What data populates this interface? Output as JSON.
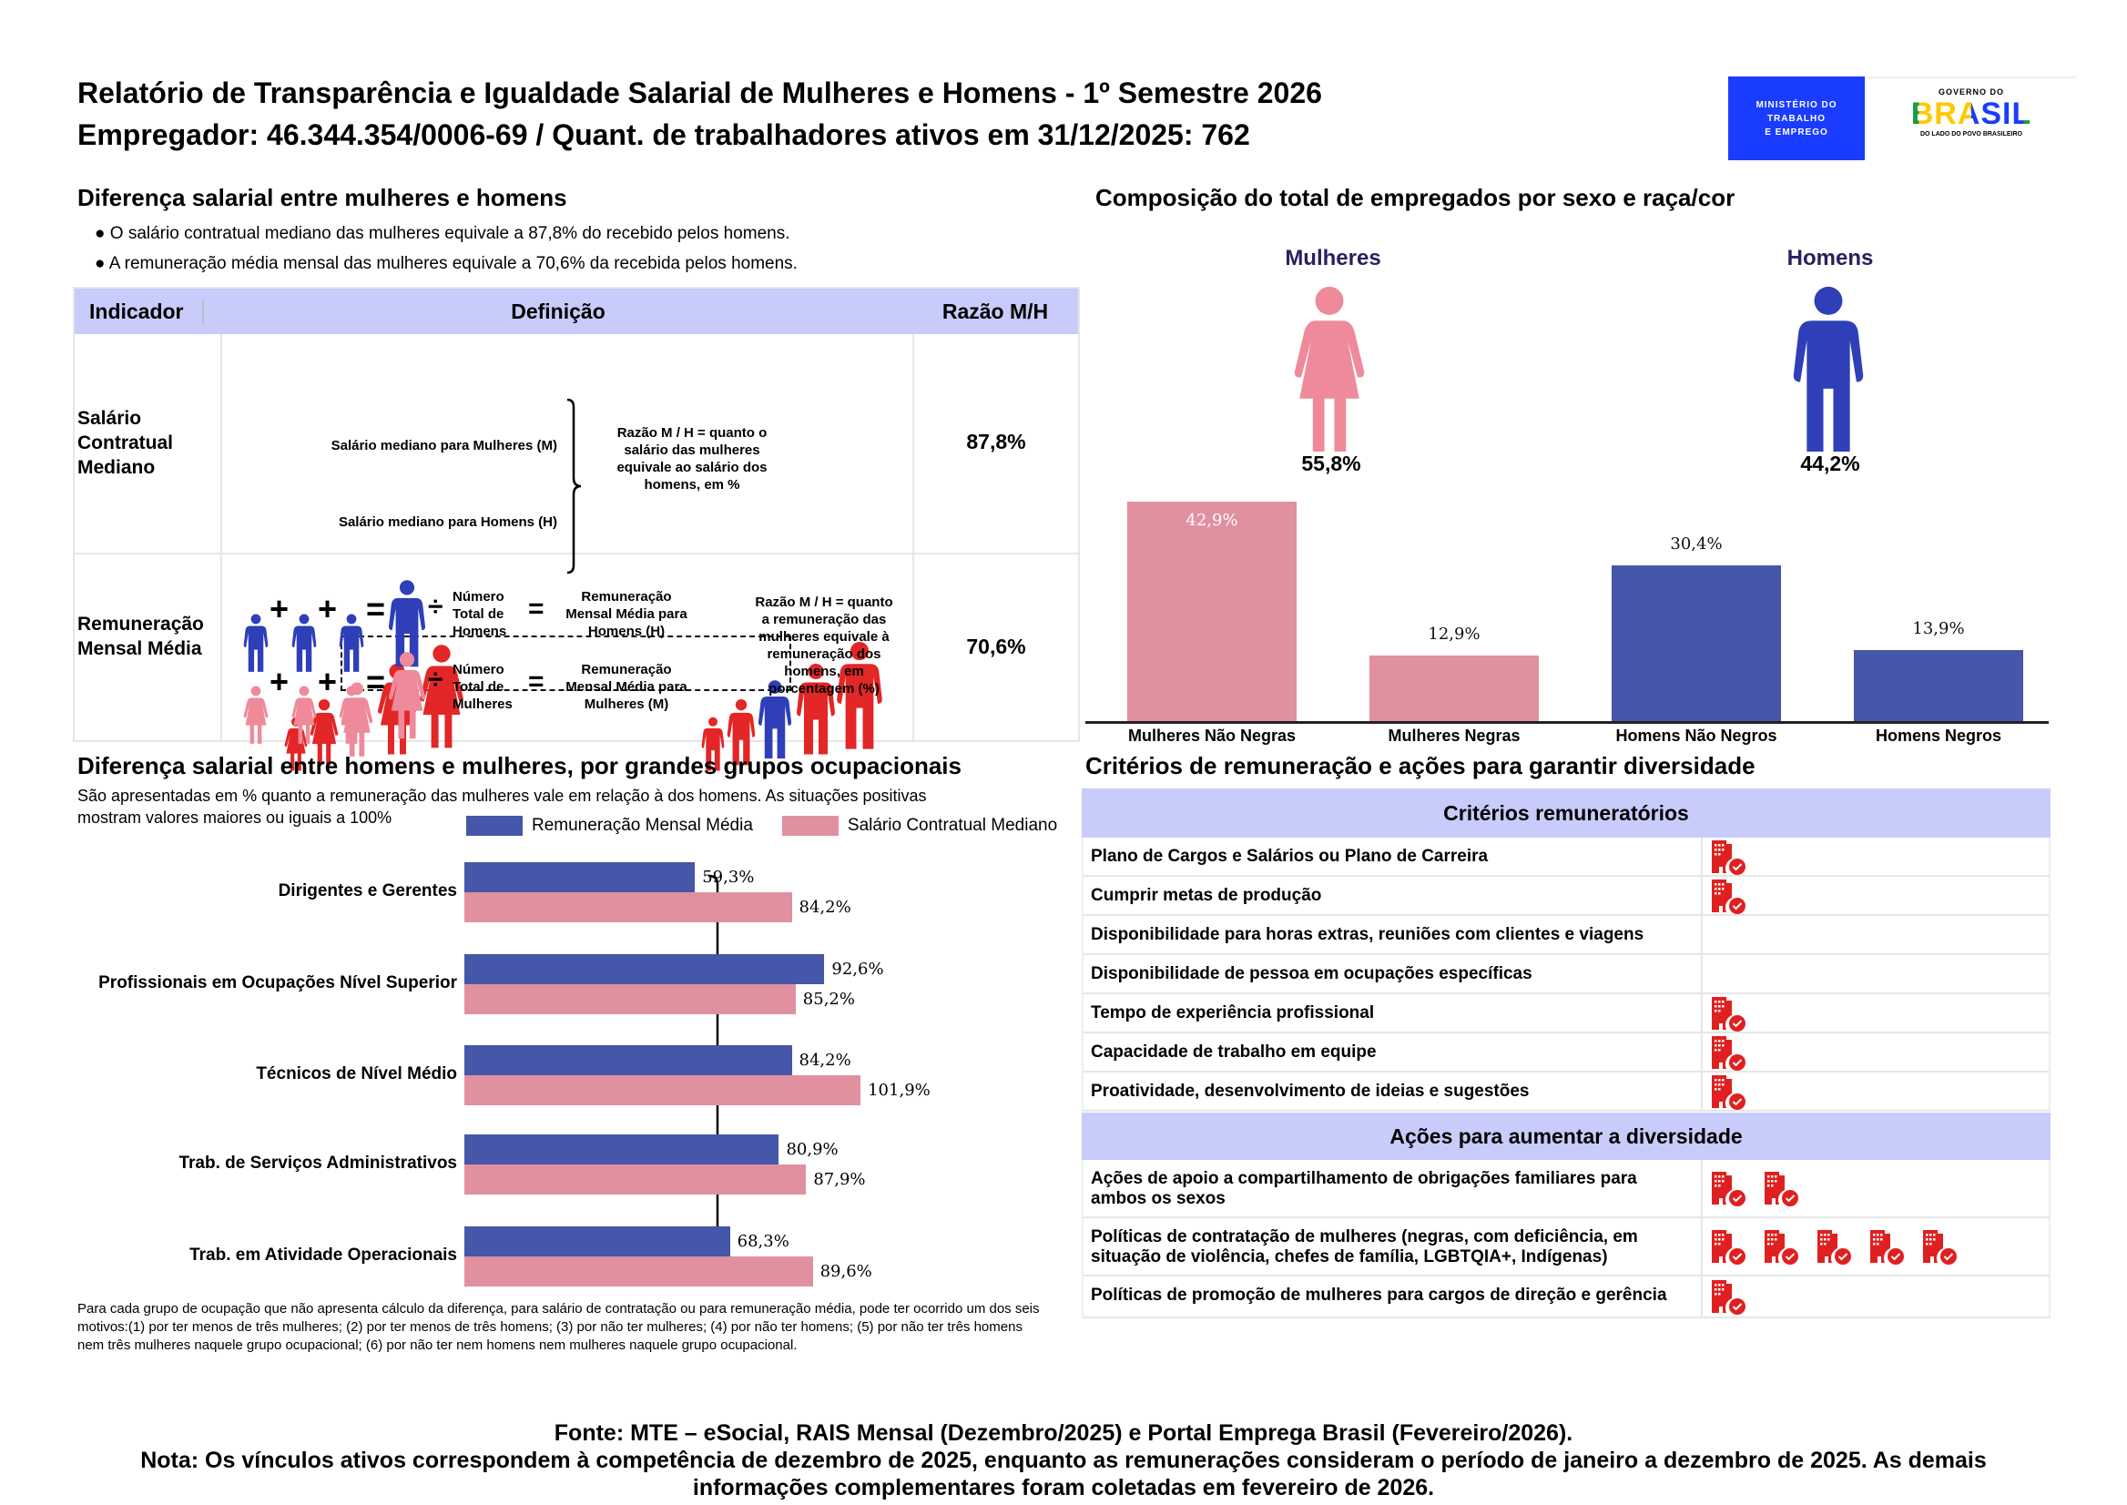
{
  "header": {
    "title": "Relatório de Transparência e Igualdade Salarial de Mulheres e Homens - 1º Semestre 2026",
    "employer": "Empregador: 46.344.354/0006-69 / Quant. de trabalhadores ativos em 31/12/2025: 762",
    "logo_mte": [
      "MINISTÉRIO DO",
      "TRABALHO",
      "E EMPREGO"
    ],
    "logo_gov": {
      "top": "GOVERNO DO",
      "word": "BRASIL",
      "bottom": "DO LADO DO POVO BRASILEIRO"
    }
  },
  "salary_gap": {
    "heading": "Diferença salarial entre mulheres e homens",
    "bullets": [
      "O salário contratual mediano das mulheres equivale a 87,8% do recebido pelos homens.",
      "A remuneração média mensal das mulheres equivale a 70,6% da recebida pelos homens."
    ],
    "table": {
      "headers": [
        "Indicador",
        "Definição",
        "Razão M/H"
      ],
      "rows": [
        {
          "indicator": [
            "Salário",
            "Contratual",
            "Mediano"
          ],
          "def_left": [
            "Salário mediano para Mulheres (M)",
            "Salário mediano para Homens (H)"
          ],
          "def_right": [
            "Razão M / H = quanto o",
            "salário das mulheres",
            "equivale ao salário dos",
            "homens, em %"
          ],
          "ratio": "87,8%"
        },
        {
          "indicator": [
            "Remuneração",
            "Mensal Média"
          ],
          "men_count": [
            "Número",
            "Total de",
            "Homens"
          ],
          "men_result": [
            "Remuneração",
            "Mensal Média para",
            "Homens (H)"
          ],
          "women_count": [
            "Número",
            "Total de",
            "Mulheres"
          ],
          "women_result": [
            "Remuneração",
            "Mensal Média para",
            "Mulheres (M)"
          ],
          "def_right": [
            "Razão M / H = quanto",
            "a remuneração das",
            "mulheres equivale à",
            "remuneração dos",
            "homens, em",
            "porcentagem (%)"
          ],
          "ratio": "70,6%",
          "symbols": {
            "plus": "+",
            "eq": "=",
            "div": "÷"
          }
        }
      ]
    }
  },
  "composition": {
    "heading": "Composição do total de empregados por sexo e raça/cor",
    "women_label": "Mulheres",
    "men_label": "Homens",
    "women_pct": "55,8%",
    "men_pct": "44,2%"
  },
  "chart_data": [
    {
      "type": "bar",
      "title": "Composição do total de empregados por sexo e raça/cor",
      "categories": [
        "Mulheres Não Negras",
        "Mulheres Negras",
        "Homens Não Negros",
        "Homens Negros"
      ],
      "values": [
        42.9,
        12.9,
        30.4,
        13.9
      ],
      "labels": [
        "42,9%",
        "12,9%",
        "30,4%",
        "13,9%"
      ],
      "colors": [
        "#e0909e",
        "#e0909e",
        "#4656a8",
        "#4656a8"
      ],
      "ylim": [
        0,
        45
      ]
    },
    {
      "type": "bar",
      "orientation": "horizontal",
      "title": "Diferença salarial entre homens e mulheres, por grandes grupos ocupacionais",
      "subtitle": [
        "São apresentadas em % quanto a remuneração das mulheres vale em relação à dos homens. As situações positivas",
        "mostram valores maiores ou iguais a 100%"
      ],
      "categories": [
        "Dirigentes e Gerentes",
        "Profissionais em Ocupações Nível Superior",
        "Técnicos de Nível Médio",
        "Trab. de Serviços Administrativos",
        "Trab. em Atividade Operacionais"
      ],
      "series": [
        {
          "name": "Remuneração Mensal Média",
          "color": "#4656a8",
          "values": [
            59.3,
            92.6,
            84.2,
            80.9,
            68.3
          ],
          "labels": [
            "59,3%",
            "92,6%",
            "84,2%",
            "80,9%",
            "68,3%"
          ]
        },
        {
          "name": "Salário Contratual Mediano",
          "color": "#e0909e",
          "values": [
            84.2,
            85.2,
            101.9,
            87.9,
            89.6
          ],
          "labels": [
            "84,2%",
            "85,2%",
            "101,9%",
            "87,9%",
            "89,6%"
          ]
        }
      ],
      "legend": "top-right",
      "xlim": [
        0,
        105
      ]
    }
  ],
  "occupation_note": "Para cada grupo de ocupação que não apresenta cálculo da diferença, para salário de contratação ou para remuneração média, pode ter ocorrido um dos seis motivos:(1) por ter menos de três mulheres; (2) por ter menos de três homens; (3) por não ter mulheres; (4) por não ter homens; (5) por não ter três homens nem três mulheres naquele grupo ocupacional; (6) por não ter nem homens nem mulheres naquele grupo ocupacional.",
  "criteria": {
    "heading": "Critérios de remuneração e ações para garantir diversidade",
    "section1": "Critérios remuneratórios",
    "rows1": [
      {
        "label": "Plano de Cargos e Salários ou Plano de Carreira",
        "icons": 1
      },
      {
        "label": "Cumprir metas de produção",
        "icons": 1
      },
      {
        "label": "Disponibilidade para horas extras, reuniões com clientes e viagens",
        "icons": 0
      },
      {
        "label": "Disponibilidade de pessoa em ocupações específicas",
        "icons": 0
      },
      {
        "label": "Tempo de experiência profissional",
        "icons": 1
      },
      {
        "label": "Capacidade de trabalho em equipe",
        "icons": 1
      },
      {
        "label": "Proatividade, desenvolvimento de ideias e sugestões",
        "icons": 1
      }
    ],
    "section2": "Ações para aumentar a diversidade",
    "rows2": [
      {
        "label": "Ações de apoio a compartilhamento de obrigações familiares para ambos os sexos",
        "icons": 2
      },
      {
        "label": "Políticas de contratação de mulheres (negras, com deficiência, em situação de violência, chefes de família, LGBTQIA+, Indígenas)",
        "icons": 5
      },
      {
        "label": "Políticas de promoção de mulheres para cargos de direção e gerência",
        "icons": 1
      }
    ],
    "icon_name": "building-check-icon",
    "icon_color": "#e02020"
  },
  "footer": {
    "source": "Fonte: MTE – eSocial, RAIS Mensal (Dezembro/2025) e Portal Emprega Brasil (Fevereiro/2026).",
    "note1": "Nota: Os vínculos ativos correspondem à competência de dezembro de 2025, enquanto as remunerações consideram o período de janeiro a dezembro de 2025. As demais",
    "note2": "informações complementares foram coletadas em fevereiro de 2026."
  }
}
